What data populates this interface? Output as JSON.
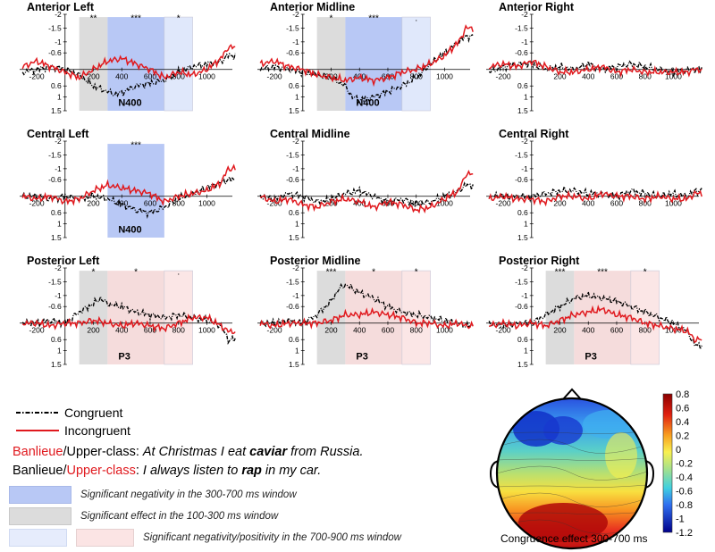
{
  "chart_data": [
    {
      "type": "line",
      "panel": "Anterior Left",
      "title": "Anterior Left",
      "ylim": [
        1.5,
        -2
      ],
      "yticks": [
        "-2",
        "-1.5",
        "-1",
        "-0.6",
        "0.6",
        "1",
        "1.5"
      ],
      "xticks": [
        "-200",
        "200",
        "400",
        "600",
        "800",
        "1000"
      ],
      "windows": [
        {
          "range": [
            100,
            300
          ],
          "kind": "gray",
          "stars": "**"
        },
        {
          "range": [
            300,
            700
          ],
          "kind": "blue",
          "stars": "***"
        },
        {
          "range": [
            700,
            900
          ],
          "kind": "lightblue",
          "stars": "*"
        }
      ],
      "component": "N400",
      "series": [
        {
          "name": "Congruent",
          "x": [
            -300,
            -200,
            -100,
            0,
            100,
            200,
            300,
            350,
            400,
            500,
            600,
            700,
            800,
            900,
            1000,
            1100,
            1150
          ],
          "values": [
            0.1,
            0.0,
            -0.1,
            0.0,
            0.2,
            0.6,
            0.8,
            0.9,
            0.85,
            0.6,
            0.5,
            0.4,
            0.1,
            -0.1,
            -0.2,
            -0.3,
            -0.5
          ]
        },
        {
          "name": "Incongruent",
          "x": [
            -300,
            -200,
            -100,
            0,
            100,
            200,
            300,
            400,
            500,
            600,
            700,
            800,
            900,
            1000,
            1100,
            1150
          ],
          "values": [
            -0.1,
            -0.3,
            -0.1,
            0.1,
            0.3,
            0.0,
            -0.3,
            -0.4,
            -0.2,
            0.0,
            0.3,
            0.1,
            0.2,
            0.0,
            -0.4,
            -0.8
          ]
        }
      ]
    },
    {
      "type": "line",
      "panel": "Anterior Midline",
      "title": "Anterior Midline",
      "ylim": [
        1.5,
        -2
      ],
      "yticks": [
        "-2",
        "-1.5",
        "-1",
        "-0.6",
        "0.6",
        "1",
        "1.5"
      ],
      "xticks": [
        "-200",
        "200",
        "400",
        "600",
        "800",
        "1000"
      ],
      "windows": [
        {
          "range": [
            100,
            300
          ],
          "kind": "gray",
          "stars": "*"
        },
        {
          "range": [
            300,
            700
          ],
          "kind": "blue",
          "stars": "***"
        },
        {
          "range": [
            700,
            900
          ],
          "kind": "lightblue",
          "stars": "."
        }
      ],
      "component": "N400",
      "series": [
        {
          "name": "Congruent",
          "x": [
            -300,
            -200,
            -100,
            0,
            100,
            200,
            300,
            350,
            400,
            500,
            600,
            700,
            800,
            900,
            1000,
            1100,
            1150
          ],
          "values": [
            0.0,
            -0.1,
            0.0,
            0.1,
            0.2,
            0.3,
            0.6,
            1.0,
            1.1,
            1.0,
            0.8,
            0.6,
            0.3,
            -0.2,
            -0.6,
            -1.0,
            -1.2
          ]
        },
        {
          "name": "Incongruent",
          "x": [
            -300,
            -200,
            -100,
            0,
            100,
            200,
            300,
            400,
            500,
            600,
            700,
            800,
            900,
            1000,
            1100,
            1150
          ],
          "values": [
            -0.2,
            -0.3,
            -0.1,
            0.0,
            0.2,
            0.3,
            0.4,
            0.3,
            0.4,
            0.3,
            0.1,
            0.0,
            -0.2,
            -0.5,
            -1.0,
            -1.5
          ]
        }
      ]
    },
    {
      "type": "line",
      "panel": "Anterior Right",
      "title": "Anterior Right",
      "ylim": [
        1.5,
        -2
      ],
      "yticks": [
        "-2",
        "-1.5",
        "-1",
        "-0.6",
        "0.6",
        "1",
        "1.5"
      ],
      "xticks": [
        "-200",
        "200",
        "400",
        "600",
        "800",
        "1000"
      ],
      "windows": [],
      "component": "",
      "series": [
        {
          "name": "Congruent",
          "x": [
            -300,
            -200,
            -100,
            0,
            100,
            200,
            300,
            400,
            500,
            600,
            700,
            800,
            900,
            1000,
            1100,
            1150
          ],
          "values": [
            0.1,
            -0.1,
            -0.2,
            -0.2,
            0.0,
            -0.1,
            0.0,
            -0.2,
            0.0,
            -0.1,
            -0.2,
            -0.1,
            0.0,
            0.1,
            0.0,
            0.0
          ]
        },
        {
          "name": "Incongruent",
          "x": [
            -300,
            -200,
            -100,
            0,
            100,
            200,
            300,
            400,
            500,
            600,
            700,
            800,
            900,
            1000,
            1100,
            1150
          ],
          "values": [
            -0.1,
            -0.2,
            -0.1,
            -0.3,
            -0.1,
            0.1,
            0.1,
            0.0,
            -0.1,
            0.1,
            0.0,
            0.1,
            0.1,
            0.1,
            0.1,
            0.0
          ]
        }
      ]
    },
    {
      "type": "line",
      "panel": "Central Left",
      "title": "Central Left",
      "ylim": [
        1.5,
        -2
      ],
      "yticks": [
        "-2",
        "-1.5",
        "-1",
        "-0.6",
        "0.6",
        "1",
        "1.5"
      ],
      "xticks": [
        "-200",
        "200",
        "400",
        "600",
        "800",
        "1000"
      ],
      "windows": [
        {
          "range": [
            300,
            700
          ],
          "kind": "blue",
          "stars": "***"
        }
      ],
      "component": "N400",
      "series": [
        {
          "name": "Congruent",
          "x": [
            -300,
            -200,
            -100,
            0,
            100,
            200,
            300,
            400,
            500,
            600,
            700,
            800,
            900,
            1000,
            1100,
            1150
          ],
          "values": [
            0.0,
            0.0,
            0.1,
            0.0,
            0.1,
            0.0,
            0.1,
            0.3,
            0.5,
            0.6,
            0.4,
            0.1,
            -0.1,
            -0.3,
            -0.5,
            -0.6
          ]
        },
        {
          "name": "Incongruent",
          "x": [
            -300,
            -200,
            -100,
            0,
            100,
            200,
            300,
            400,
            500,
            600,
            700,
            800,
            900,
            1000,
            1100,
            1150
          ],
          "values": [
            0.0,
            0.1,
            0.0,
            0.2,
            0.1,
            -0.2,
            -0.4,
            -0.3,
            -0.2,
            -0.1,
            0.2,
            0.0,
            -0.1,
            -0.2,
            -0.5,
            -1.0
          ]
        }
      ]
    },
    {
      "type": "line",
      "panel": "Central Midline",
      "title": "Central Midline",
      "ylim": [
        1.5,
        -2
      ],
      "yticks": [
        "-2",
        "-1.5",
        "-1",
        "-0.6",
        "0.6",
        "1",
        "1.5"
      ],
      "xticks": [
        "-200",
        "200",
        "400",
        "600",
        "800",
        "1000"
      ],
      "windows": [],
      "component": "",
      "series": [
        {
          "name": "Congruent",
          "x": [
            -300,
            -200,
            -100,
            0,
            100,
            200,
            300,
            400,
            500,
            600,
            700,
            800,
            900,
            1000,
            1100,
            1150
          ],
          "values": [
            0.0,
            0.1,
            -0.1,
            0.0,
            0.2,
            0.1,
            -0.1,
            -0.2,
            0.0,
            0.2,
            0.1,
            0.3,
            0.2,
            0.0,
            -0.2,
            -0.4
          ]
        },
        {
          "name": "Incongruent",
          "x": [
            -300,
            -200,
            -100,
            0,
            100,
            200,
            300,
            400,
            500,
            600,
            700,
            800,
            900,
            1000,
            1100,
            1150
          ],
          "values": [
            0.0,
            0.2,
            0.1,
            0.3,
            0.4,
            0.2,
            0.1,
            0.2,
            0.4,
            0.2,
            0.3,
            0.5,
            0.4,
            0.1,
            -0.2,
            -0.8
          ]
        }
      ]
    },
    {
      "type": "line",
      "panel": "Central Right",
      "title": "Central Right",
      "ylim": [
        1.5,
        -2
      ],
      "yticks": [
        "-2",
        "-1.5",
        "-1",
        "-0.6",
        "0.6",
        "1",
        "1.5"
      ],
      "xticks": [
        "-200",
        "200",
        "400",
        "600",
        "800",
        "1000"
      ],
      "windows": [],
      "component": "",
      "series": [
        {
          "name": "Congruent",
          "x": [
            -300,
            -200,
            -100,
            0,
            100,
            200,
            300,
            400,
            500,
            600,
            700,
            800,
            900,
            1000,
            1100,
            1150
          ],
          "values": [
            0.0,
            0.0,
            0.0,
            0.0,
            -0.1,
            -0.2,
            -0.2,
            -0.1,
            -0.1,
            0.0,
            -0.2,
            -0.1,
            0.0,
            -0.1,
            0.0,
            -0.2
          ]
        },
        {
          "name": "Incongruent",
          "x": [
            -300,
            -200,
            -100,
            0,
            100,
            200,
            300,
            400,
            500,
            600,
            700,
            800,
            900,
            1000,
            1100,
            1150
          ],
          "values": [
            0.1,
            0.0,
            0.1,
            0.1,
            0.2,
            0.0,
            0.0,
            0.1,
            -0.1,
            0.0,
            0.0,
            0.1,
            0.0,
            0.1,
            0.1,
            -0.1
          ]
        }
      ]
    },
    {
      "type": "line",
      "panel": "Posterior Left",
      "title": "Posterior Left",
      "ylim": [
        1.5,
        -2
      ],
      "yticks": [
        "-2",
        "-1.5",
        "-1",
        "-0.6",
        "0.6",
        "1",
        "1.5"
      ],
      "xticks": [
        "-200",
        "200",
        "400",
        "600",
        "800",
        "1000"
      ],
      "windows": [
        {
          "range": [
            100,
            300
          ],
          "kind": "gray",
          "stars": "*"
        },
        {
          "range": [
            300,
            700
          ],
          "kind": "pink",
          "stars": "*"
        },
        {
          "range": [
            700,
            900
          ],
          "kind": "lightpink",
          "stars": "."
        }
      ],
      "component": "P3",
      "series": [
        {
          "name": "Congruent",
          "x": [
            -300,
            -200,
            -100,
            0,
            100,
            200,
            250,
            300,
            400,
            500,
            600,
            700,
            800,
            900,
            1000,
            1100,
            1150
          ],
          "values": [
            0.0,
            0.0,
            -0.1,
            0.0,
            -0.4,
            -0.7,
            -0.9,
            -0.7,
            -0.6,
            -0.4,
            -0.3,
            -0.2,
            -0.3,
            -0.2,
            -0.1,
            0.1,
            0.6
          ]
        },
        {
          "name": "Incongruent",
          "x": [
            -300,
            -200,
            -100,
            0,
            100,
            200,
            300,
            400,
            500,
            600,
            700,
            800,
            900,
            1000,
            1100,
            1150
          ],
          "values": [
            0.0,
            0.0,
            0.1,
            0.0,
            0.0,
            -0.1,
            0.0,
            0.1,
            0.0,
            0.1,
            0.2,
            0.0,
            -0.2,
            -0.2,
            0.1,
            0.3
          ]
        }
      ]
    },
    {
      "type": "line",
      "panel": "Posterior Midline",
      "title": "Posterior Midline",
      "ylim": [
        1.5,
        -2
      ],
      "yticks": [
        "-2",
        "-1.5",
        "-1",
        "-0.6",
        "0.6",
        "1",
        "1.5"
      ],
      "xticks": [
        "-200",
        "200",
        "400",
        "600",
        "800",
        "1000"
      ],
      "windows": [
        {
          "range": [
            100,
            300
          ],
          "kind": "gray",
          "stars": "***"
        },
        {
          "range": [
            300,
            700
          ],
          "kind": "pink",
          "stars": "*"
        },
        {
          "range": [
            700,
            900
          ],
          "kind": "lightpink",
          "stars": "*"
        }
      ],
      "component": "P3",
      "series": [
        {
          "name": "Congruent",
          "x": [
            -300,
            -200,
            -100,
            0,
            100,
            200,
            250,
            300,
            400,
            500,
            600,
            700,
            800,
            900,
            1000,
            1100,
            1150
          ],
          "values": [
            0.0,
            0.0,
            -0.1,
            0.0,
            -0.3,
            -0.8,
            -1.2,
            -1.4,
            -1.1,
            -0.9,
            -0.6,
            -0.4,
            -0.3,
            -0.2,
            -0.1,
            0.0,
            0.1
          ]
        },
        {
          "name": "Incongruent",
          "x": [
            -300,
            -200,
            -100,
            0,
            100,
            200,
            300,
            400,
            500,
            600,
            700,
            800,
            900,
            1000,
            1100,
            1150
          ],
          "values": [
            0.0,
            0.1,
            0.0,
            0.0,
            0.0,
            -0.1,
            -0.3,
            -0.3,
            -0.4,
            -0.3,
            -0.2,
            0.0,
            0.0,
            0.1,
            0.0,
            0.1
          ]
        }
      ]
    },
    {
      "type": "line",
      "panel": "Posterior Right",
      "title": "Posterior Right",
      "ylim": [
        1.5,
        -2
      ],
      "yticks": [
        "-2",
        "-1.5",
        "-1",
        "-0.6",
        "0.6",
        "1",
        "1.5"
      ],
      "xticks": [
        "-200",
        "200",
        "400",
        "600",
        "800",
        "1000"
      ],
      "windows": [
        {
          "range": [
            100,
            300
          ],
          "kind": "gray",
          "stars": "***"
        },
        {
          "range": [
            300,
            700
          ],
          "kind": "pink",
          "stars": "***"
        },
        {
          "range": [
            700,
            900
          ],
          "kind": "lightpink",
          "stars": "*"
        }
      ],
      "component": "P3",
      "series": [
        {
          "name": "Congruent",
          "x": [
            -300,
            -200,
            -100,
            0,
            100,
            200,
            300,
            400,
            500,
            600,
            700,
            800,
            900,
            1000,
            1100,
            1150
          ],
          "values": [
            0.0,
            0.1,
            0.0,
            0.0,
            -0.3,
            -0.6,
            -0.9,
            -1.0,
            -0.9,
            -0.8,
            -0.6,
            -0.4,
            -0.2,
            0.0,
            0.3,
            0.8
          ]
        },
        {
          "name": "Incongruent",
          "x": [
            -300,
            -200,
            -100,
            0,
            100,
            200,
            300,
            400,
            500,
            600,
            700,
            800,
            900,
            1000,
            1100,
            1150
          ],
          "values": [
            0.1,
            0.0,
            0.1,
            0.0,
            0.1,
            -0.1,
            -0.3,
            -0.4,
            -0.5,
            -0.3,
            -0.2,
            0.0,
            0.1,
            0.2,
            0.3,
            0.6
          ]
        }
      ]
    },
    {
      "type": "heatmap",
      "panel": "topography",
      "colorbar_ticks": [
        "0.8",
        "0.6",
        "0.4",
        "0.2",
        "0",
        "-0.2",
        "-0.4",
        "-0.6",
        "-0.8",
        "-1",
        "-1.2"
      ],
      "range": [
        -1.2,
        0.8
      ],
      "caption": "Congruence effect 300-700 ms"
    }
  ],
  "legend": {
    "congruent": "Congruent",
    "incongruent": "Incongruent"
  },
  "sentences": [
    {
      "red_part": "Banlieue",
      "sep": "/",
      "black_part": "Upper-class",
      "colon": ": ",
      "text_a": "At Christmas I eat ",
      "bold": "caviar",
      "text_b": " from Russia."
    },
    {
      "black_part": "Banlieue",
      "sep": "/",
      "red_part": "Upper-class",
      "colon": ": ",
      "text_a": "I always listen to ",
      "bold": "rap",
      "text_b": " in my car."
    }
  ],
  "shade_legend": [
    "Significant negativity in the 300-700 ms window",
    "Significant effect in the 100-300 ms window",
    "Significant negativity/positivity in the 700-900 ms window"
  ],
  "colors": {
    "congruent": "#000000",
    "incongruent": "#e0191e",
    "gray": "#dcdcdc",
    "blue": "#b8c8f5",
    "lightblue": "#e0e8fb",
    "pink": "#f5dcdc",
    "lightpink": "#fbe6e6"
  }
}
